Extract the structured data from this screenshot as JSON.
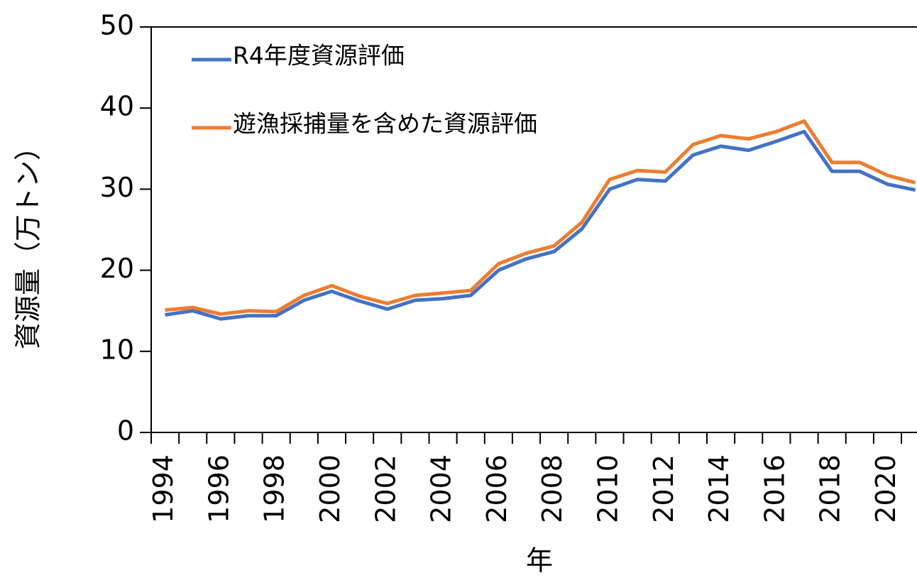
{
  "chart_data": {
    "type": "line",
    "xlabel": "年",
    "ylabel": "資源量（万トン）",
    "categories": [
      "1994",
      null,
      "1996",
      null,
      "1998",
      null,
      "2000",
      null,
      "2002",
      null,
      "2004",
      null,
      "2006",
      null,
      "2008",
      null,
      "2010",
      null,
      "2012",
      null,
      "2014",
      null,
      "2016",
      null,
      "2018",
      null,
      "2020",
      null
    ],
    "series": [
      {
        "name": "R4年度資源評価",
        "color": "#4472c4",
        "values": [
          14.5,
          15.0,
          14.0,
          14.4,
          14.4,
          16.3,
          17.4,
          16.2,
          15.2,
          16.3,
          16.5,
          16.9,
          20.0,
          21.4,
          22.3,
          25.1,
          30.0,
          31.2,
          31.0,
          34.2,
          35.3,
          34.8,
          35.9,
          37.1,
          32.2,
          32.2,
          30.6,
          29.9
        ]
      },
      {
        "name": "遊漁採捕量を含めた資源評価",
        "color": "#ed7d31",
        "values": [
          15.1,
          15.4,
          14.6,
          15.0,
          14.9,
          16.9,
          18.1,
          16.8,
          15.9,
          16.9,
          17.2,
          17.5,
          20.8,
          22.1,
          23.0,
          25.9,
          31.2,
          32.3,
          32.1,
          35.5,
          36.6,
          36.2,
          37.1,
          38.4,
          33.3,
          33.3,
          31.7,
          30.8
        ]
      }
    ],
    "ylim": [
      0,
      50
    ],
    "yticks": [
      0,
      10,
      20,
      30,
      40,
      50
    ],
    "legend": "upper left"
  }
}
